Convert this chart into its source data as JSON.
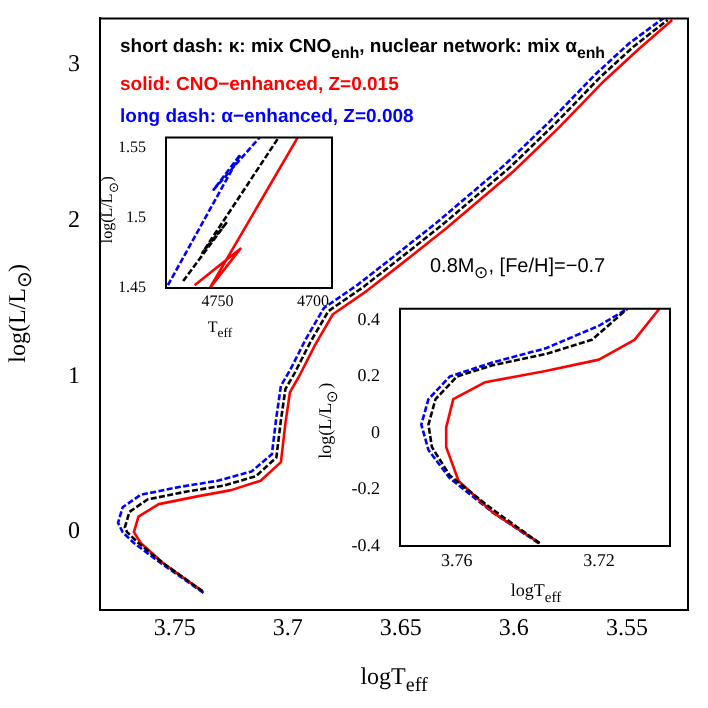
{
  "chart_data": [
    {
      "type": "line",
      "xlabel": "logT$_{eff}$",
      "ylabel": "log(L/L$_{⊙}$)",
      "xlim": [
        3.783,
        3.523
      ],
      "ylim": [
        -0.5,
        3.3
      ],
      "xticks": [
        3.75,
        {
          "value": 3.7,
          "label": "3.7"
        },
        3.65,
        {
          "value": 3.6,
          "label": "3.6"
        },
        3.55
      ],
      "yticks": [
        0,
        1,
        2,
        3
      ],
      "grid": false,
      "legend": "top left",
      "marker": "none",
      "annotations": [
        "0.8M$_{⊙}$, [Fe/H]=−0.7"
      ],
      "series": [
        {
          "name": "short dash: κ: mix CNO$_{enh}$, nuclear network: mix α$_{enh}$",
          "color": "#000000",
          "line_style": "dashed",
          "x": [
            3.7376,
            3.755,
            3.766,
            3.771,
            3.772,
            3.77,
            3.762,
            3.745,
            3.728,
            3.714,
            3.705,
            3.703,
            3.701,
            3.697,
            3.69,
            3.682,
            3.667,
            3.652,
            3.632,
            3.602,
            3.582,
            3.562,
            3.547,
            3.532
          ],
          "values": [
            -0.38,
            -0.2,
            -0.07,
            0,
            0.03,
            0.13,
            0.21,
            0.26,
            0.3,
            0.36,
            0.48,
            0.72,
            0.92,
            1.02,
            1.22,
            1.42,
            1.57,
            1.74,
            1.97,
            2.34,
            2.62,
            2.92,
            3.12,
            3.29
          ]
        },
        {
          "name": "solid: CNO−enhanced, Z=0.015",
          "color": "#ff0000",
          "line_style": "solid",
          "x": [
            3.7376,
            3.755,
            3.765,
            3.768,
            3.766,
            3.757,
            3.74,
            3.725,
            3.712,
            3.703,
            3.701,
            3.699,
            3.695,
            3.688,
            3.68,
            3.665,
            3.65,
            3.63,
            3.6,
            3.58,
            3.56,
            3.545,
            3.53
          ],
          "values": [
            -0.38,
            -0.2,
            -0.07,
            0,
            0.1,
            0.18,
            0.23,
            0.27,
            0.33,
            0.45,
            0.7,
            0.9,
            1.0,
            1.2,
            1.4,
            1.55,
            1.72,
            1.95,
            2.32,
            2.6,
            2.9,
            3.1,
            3.29
          ]
        },
        {
          "name": "long dash: α−enhanced, Z=0.008",
          "color": "#0000ff",
          "line_style": "dashed",
          "x": [
            3.7372,
            3.756,
            3.768,
            3.773,
            3.775,
            3.773,
            3.765,
            3.748,
            3.731,
            3.716,
            3.707,
            3.705,
            3.703,
            3.699,
            3.692,
            3.684,
            3.669,
            3.654,
            3.634,
            3.604,
            3.584,
            3.564,
            3.549,
            3.534
          ],
          "values": [
            -0.39,
            -0.2,
            -0.07,
            0,
            0.06,
            0.16,
            0.24,
            0.29,
            0.33,
            0.39,
            0.5,
            0.74,
            0.94,
            1.04,
            1.24,
            1.44,
            1.59,
            1.76,
            1.99,
            2.36,
            2.64,
            2.94,
            3.14,
            3.3
          ]
        }
      ]
    },
    {
      "type": "line",
      "xlabel": "T$_{eff}$",
      "ylabel": "log(L/L$_{⊙}$)",
      "xlim": [
        4777,
        4690
      ],
      "ylim": [
        1.45,
        1.557
      ],
      "xticks": [
        4750,
        4700
      ],
      "yticks": [
        1.45,
        {
          "value": 1.5,
          "label": "1.5"
        },
        1.55
      ],
      "grid": false,
      "marker": "none",
      "series": [
        {
          "color": "#000000",
          "line_style": "dashed",
          "x": [
            4768,
            4745,
            4758,
            4718
          ],
          "values": [
            1.455,
            1.497,
            1.475,
            1.557
          ]
        },
        {
          "color": "#ff0000",
          "line_style": "solid",
          "x": [
            4762,
            4738,
            4754,
            4708
          ],
          "values": [
            1.452,
            1.478,
            1.45,
            1.557
          ]
        },
        {
          "color": "#0000ff",
          "line_style": "dashed",
          "x": [
            4776,
            4738,
            4752,
            4728
          ],
          "values": [
            1.452,
            1.545,
            1.52,
            1.557
          ]
        }
      ]
    },
    {
      "type": "line",
      "xlabel": "logT$_{eff}$",
      "ylabel": "log(L/L$_{⊙}$)",
      "xlim": [
        3.776,
        3.7
      ],
      "ylim": [
        -0.4,
        0.44
      ],
      "xticks": [
        3.76,
        3.72
      ],
      "yticks": [
        0.4,
        0.2,
        0,
        -0.2,
        -0.4
      ],
      "grid": false,
      "marker": "none",
      "series": [
        {
          "color": "#000000",
          "line_style": "dashed",
          "x": [
            3.7367,
            3.75,
            3.762,
            3.767,
            3.768,
            3.766,
            3.76,
            3.75,
            3.735,
            3.722,
            3.712
          ],
          "values": [
            -0.39,
            -0.27,
            -0.15,
            -0.05,
            0.03,
            0.12,
            0.2,
            0.24,
            0.28,
            0.33,
            0.44
          ]
        },
        {
          "color": "#ff0000",
          "line_style": "solid",
          "x": [
            3.7367,
            3.75,
            3.7595,
            3.763,
            3.763,
            3.761,
            3.752,
            3.735,
            3.72,
            3.71,
            3.703
          ],
          "values": [
            -0.39,
            -0.28,
            -0.17,
            -0.05,
            0.02,
            0.12,
            0.18,
            0.22,
            0.26,
            0.33,
            0.44
          ]
        },
        {
          "color": "#0000ff",
          "line_style": "dashed",
          "x": [
            3.737,
            3.75,
            3.762,
            3.768,
            3.77,
            3.768,
            3.762,
            3.75,
            3.735,
            3.72,
            3.712
          ],
          "values": [
            -0.39,
            -0.28,
            -0.16,
            -0.06,
            0.03,
            0.12,
            0.2,
            0.25,
            0.3,
            0.38,
            0.44
          ]
        }
      ]
    }
  ]
}
